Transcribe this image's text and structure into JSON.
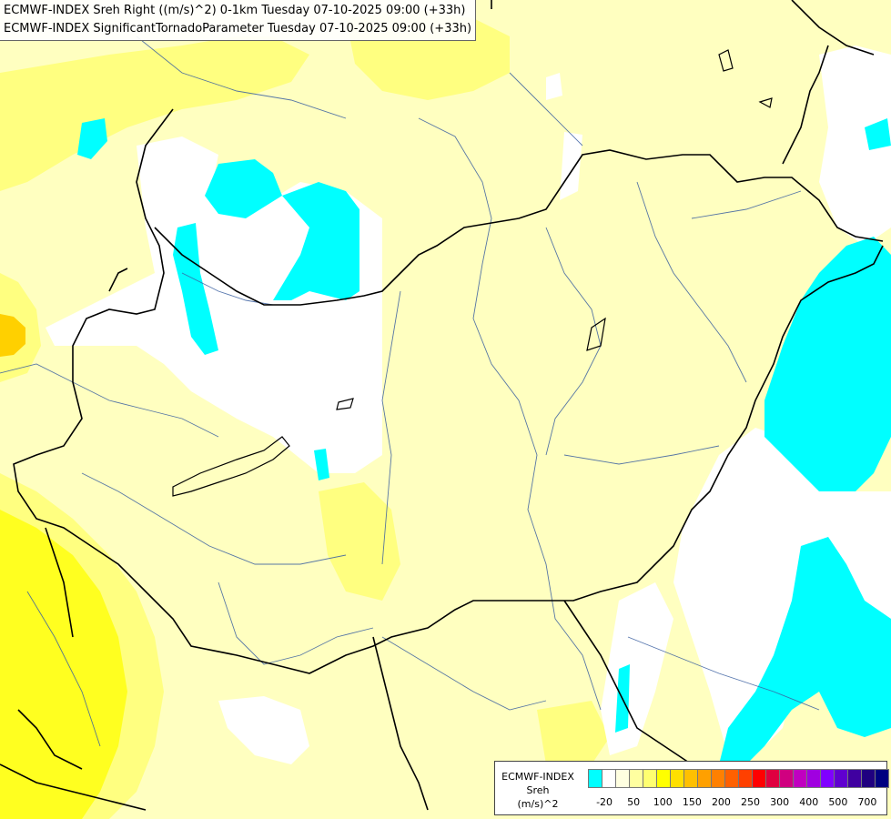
{
  "title": {
    "line1": "ECMWF-INDEX Sreh Right ((m/s)^2) 0-1km Tuesday 07-10-2025 09:00 (+33h)",
    "line2": "ECMWF-INDEX SignificantTornadoParameter Tuesday 07-10-2025 09:00 (+33h)"
  },
  "legend": {
    "model": "ECMWF-INDEX",
    "variable": "Sreh",
    "unit": "(m/s)^2",
    "colors": [
      "#00ffff",
      "#ffffff",
      "#ffffe0",
      "#ffffa0",
      "#ffff70",
      "#ffff00",
      "#ffe000",
      "#ffc000",
      "#ffa000",
      "#ff8000",
      "#ff6000",
      "#ff4000",
      "#ff0000",
      "#e00040",
      "#d00080",
      "#c000c0",
      "#a000e0",
      "#8000ff",
      "#6000d0",
      "#4000a0",
      "#200080",
      "#000080"
    ],
    "ticks": [
      {
        "label": "-20",
        "index": 1
      },
      {
        "label": "50",
        "index": 3
      },
      {
        "label": "100",
        "index": 5
      },
      {
        "label": "150",
        "index": 7
      },
      {
        "label": "200",
        "index": 9
      },
      {
        "label": "250",
        "index": 11
      },
      {
        "label": "300",
        "index": 13
      },
      {
        "label": "400",
        "index": 15
      },
      {
        "label": "500",
        "index": 17
      },
      {
        "label": "700",
        "index": 19
      }
    ]
  }
}
